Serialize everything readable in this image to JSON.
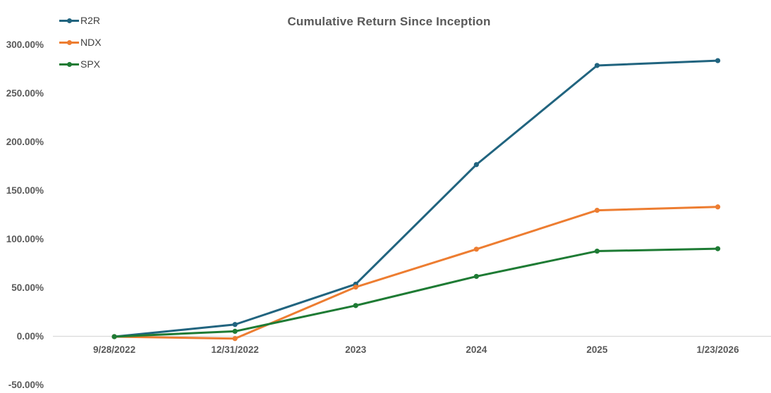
{
  "title": "Cumulative Return Since Inception",
  "legend": {
    "items": [
      {
        "label": "R2R",
        "color": "#21647F",
        "marker": "line-circle-icon"
      },
      {
        "label": "NDX",
        "color": "#ED7D31",
        "marker": "line-circle-icon"
      },
      {
        "label": "SPX",
        "color": "#1E7B34",
        "marker": "line-circle-icon"
      }
    ],
    "position": "top-left"
  },
  "axes": {
    "y_tick_labels": [
      "300.00%",
      "250.00%",
      "200.00%",
      "150.00%",
      "100.00%",
      "50.00%",
      "0.00%",
      "-50.00%"
    ],
    "y_tick_values": [
      300,
      250,
      200,
      150,
      100,
      50,
      0,
      -50
    ],
    "x_tick_labels": [
      "9/28/2022",
      "12/31/2022",
      "2023",
      "2024",
      "2025",
      "1/23/2026"
    ],
    "axis_line_color": "#d9d9d9",
    "label_color": "#595959"
  },
  "chart_data": {
    "type": "line",
    "title": "Cumulative Return Since Inception",
    "categories": [
      "9/28/2022",
      "12/31/2022",
      "2023",
      "2024",
      "2025",
      "1/23/2026"
    ],
    "series": [
      {
        "name": "R2R",
        "color": "#21647F",
        "values": [
          0,
          12.5,
          54,
          177,
          279,
          284
        ]
      },
      {
        "name": "NDX",
        "color": "#ED7D31",
        "values": [
          0,
          -2,
          51,
          90,
          130,
          133.5
        ]
      },
      {
        "name": "SPX",
        "color": "#1E7B34",
        "values": [
          0,
          5.5,
          32,
          62,
          88,
          90.5
        ]
      }
    ],
    "value_unit": "percent",
    "ylim": [
      -50,
      325
    ],
    "grid": false,
    "markers": "circle",
    "legend_position": "top-left"
  }
}
